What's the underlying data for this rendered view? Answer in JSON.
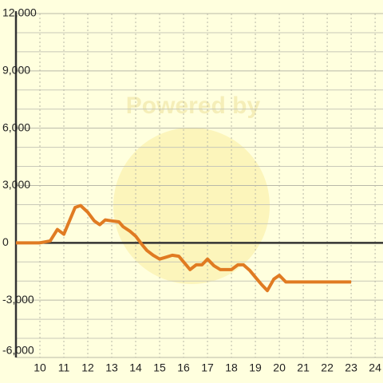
{
  "chart_data": {
    "type": "line",
    "watermark": "Powered by",
    "x": [
      9,
      10,
      10.43,
      10.73,
      11,
      11.47,
      11.7,
      12,
      12.27,
      12.5,
      12.73,
      13,
      13.3,
      13.47,
      13.77,
      14,
      14.27,
      14.47,
      14.73,
      15,
      15.27,
      15.53,
      15.8,
      16.07,
      16.27,
      16.53,
      16.77,
      17,
      17.27,
      17.53,
      18,
      18.27,
      18.5,
      18.77,
      19,
      19.27,
      19.5,
      19.77,
      20,
      20.27,
      23
    ],
    "series": [
      {
        "color": "#e07b22",
        "values": [
          0,
          0,
          100,
          700,
          450,
          1850,
          1950,
          1600,
          1150,
          950,
          1200,
          1150,
          1100,
          850,
          600,
          350,
          -100,
          -400,
          -650,
          -850,
          -750,
          -650,
          -700,
          -1100,
          -1400,
          -1150,
          -1150,
          -850,
          -1200,
          -1400,
          -1400,
          -1150,
          -1150,
          -1450,
          -1800,
          -2200,
          -2500,
          -1900,
          -1700,
          -2050,
          -2050
        ]
      }
    ],
    "xlim": [
      9,
      24.33
    ],
    "xticks": [
      10,
      11,
      12,
      13,
      14,
      15,
      16,
      17,
      18,
      19,
      20,
      21,
      22,
      23,
      24
    ],
    "ylim": [
      -6000,
      12000
    ],
    "yticks": [
      {
        "value": -6000,
        "label": "-6,000"
      },
      {
        "value": -3000,
        "label": "-3,000"
      },
      0,
      {
        "value": 3000,
        "label": "3,000"
      },
      {
        "value": 6000,
        "label": "6,000"
      },
      {
        "value": 9000,
        "label": "9,000"
      },
      {
        "value": 12000,
        "label": "12,000"
      }
    ],
    "yminor": [
      -5000,
      -4000,
      -2000,
      -1000,
      1000,
      2000,
      4000,
      5000,
      7000,
      8000,
      10000,
      11000
    ],
    "grid": true
  }
}
